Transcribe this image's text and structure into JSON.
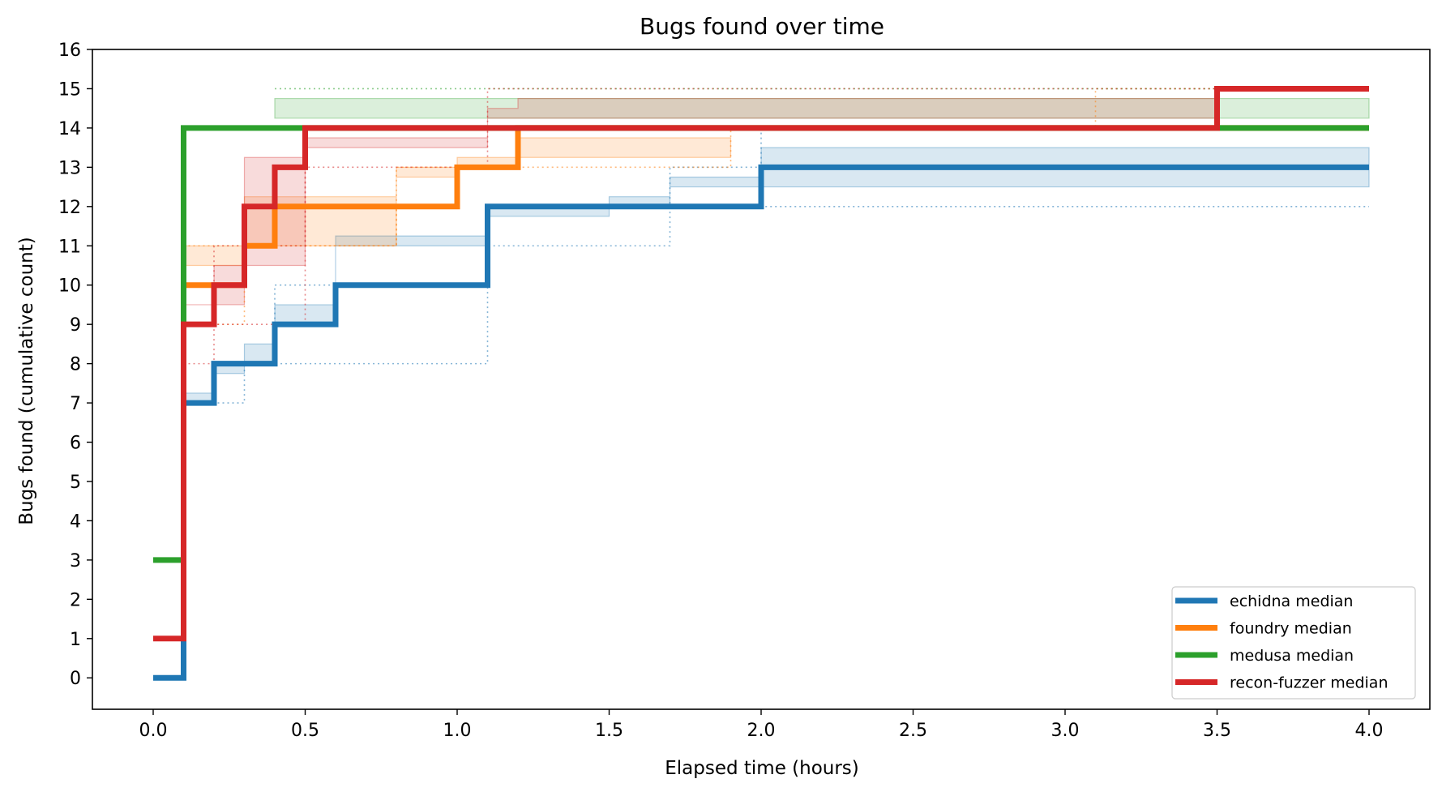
{
  "chart_data": {
    "type": "line",
    "step": true,
    "title": "Bugs found over time",
    "xlabel": "Elapsed time (hours)",
    "ylabel": "Bugs found (cumulative count)",
    "xlim": [
      -0.2,
      4.2
    ],
    "ylim": [
      -0.8,
      16
    ],
    "xticks": [
      0.0,
      0.5,
      1.0,
      1.5,
      2.0,
      2.5,
      3.0,
      3.5,
      4.0
    ],
    "xtick_labels": [
      "0.0",
      "0.5",
      "1.0",
      "1.5",
      "2.0",
      "2.5",
      "3.0",
      "3.5",
      "4.0"
    ],
    "yticks": [
      0,
      1,
      2,
      3,
      4,
      5,
      6,
      7,
      8,
      9,
      10,
      11,
      12,
      13,
      14,
      15,
      16
    ],
    "ytick_labels": [
      "0",
      "1",
      "2",
      "3",
      "4",
      "5",
      "6",
      "7",
      "8",
      "9",
      "10",
      "11",
      "12",
      "13",
      "14",
      "15",
      "16"
    ],
    "grid": false,
    "legend_position": "lower-right",
    "series": [
      {
        "name": "echidna median",
        "color": "#1f77b4",
        "x": [
          0.0,
          0.1,
          0.2,
          0.4,
          0.6,
          1.1,
          2.0,
          4.0
        ],
        "y": [
          0,
          7,
          8,
          9,
          10,
          12,
          13,
          13
        ],
        "band": {
          "x": [
            0.1,
            0.2,
            0.3,
            0.4,
            0.6,
            1.1,
            1.5,
            1.7,
            2.0,
            4.0
          ],
          "lower": [
            7,
            7.25,
            8,
            8.5,
            9,
            11.25,
            12,
            12.25,
            12.5,
            12.5
          ],
          "upper": [
            7,
            7.75,
            8,
            9.5,
            11,
            11.75,
            12,
            12.75,
            13.5,
            13.5
          ]
        },
        "range": {
          "x": [
            0.1,
            0.2,
            0.3,
            0.4,
            1.1,
            1.5,
            1.7,
            2.0,
            4.0
          ],
          "lower": [
            7,
            7,
            8,
            8,
            11,
            11,
            12,
            12,
            12
          ],
          "upper": [
            7,
            8,
            8,
            10,
            12,
            12,
            13,
            14,
            14
          ]
        }
      },
      {
        "name": "foundry median",
        "color": "#ff7f0e",
        "x": [
          0.1,
          0.3,
          0.4,
          1.0,
          1.2,
          4.0
        ],
        "y": [
          10,
          11,
          12,
          13,
          14,
          14
        ],
        "band": {
          "x": [
            0.1,
            0.3,
            0.8,
            1.0,
            1.2,
            1.9
          ],
          "lower": [
            9.5,
            11,
            12.25,
            13,
            13.25,
            13.25
          ],
          "upper": [
            10.5,
            11,
            12.75,
            13,
            13.75,
            13.75
          ]
        },
        "range": {
          "x": [
            0.1,
            0.3,
            0.8,
            1.0,
            1.2,
            1.9,
            3.1,
            4.0
          ],
          "lower": [
            9,
            11,
            12,
            13,
            13,
            14,
            14,
            14
          ],
          "upper": [
            11,
            11,
            13,
            13,
            14,
            14,
            15,
            15
          ]
        }
      },
      {
        "name": "medusa median",
        "color": "#2ca02c",
        "x": [
          0.0,
          0.1,
          4.0
        ],
        "y": [
          3,
          14,
          14
        ],
        "band": {
          "x": [
            0.4,
            1.1,
            1.2,
            4.0
          ],
          "lower": [
            14.25,
            14.25,
            14.25,
            14.25
          ],
          "upper": [
            14.75,
            14.75,
            14.75,
            14.75
          ]
        },
        "range": {
          "x": [
            0.4,
            4.0
          ],
          "lower": [
            14,
            14
          ],
          "upper": [
            15,
            15
          ]
        }
      },
      {
        "name": "recon-fuzzer median",
        "color": "#d62728",
        "x": [
          0.0,
          0.1,
          0.2,
          0.3,
          0.4,
          0.5,
          3.5,
          4.0
        ],
        "y": [
          1,
          9,
          10,
          12,
          13,
          14,
          15,
          15
        ],
        "band": {
          "x": [
            0.1,
            0.2,
            0.3,
            0.5,
            1.1,
            1.2,
            3.5
          ],
          "lower": [
            8.5,
            9.5,
            9.5,
            13.25,
            13.5,
            14.25,
            14.25
          ],
          "upper": [
            9.5,
            10.5,
            10.5,
            13.75,
            14.5,
            14.75,
            14.75
          ]
        },
        "range": {
          "x": [
            0.1,
            0.2,
            0.3,
            0.5,
            1.1,
            4.0
          ],
          "lower": [
            8,
            9,
            9,
            13,
            14,
            14
          ],
          "upper": [
            10,
            11,
            11,
            14,
            15,
            15
          ]
        }
      }
    ]
  }
}
